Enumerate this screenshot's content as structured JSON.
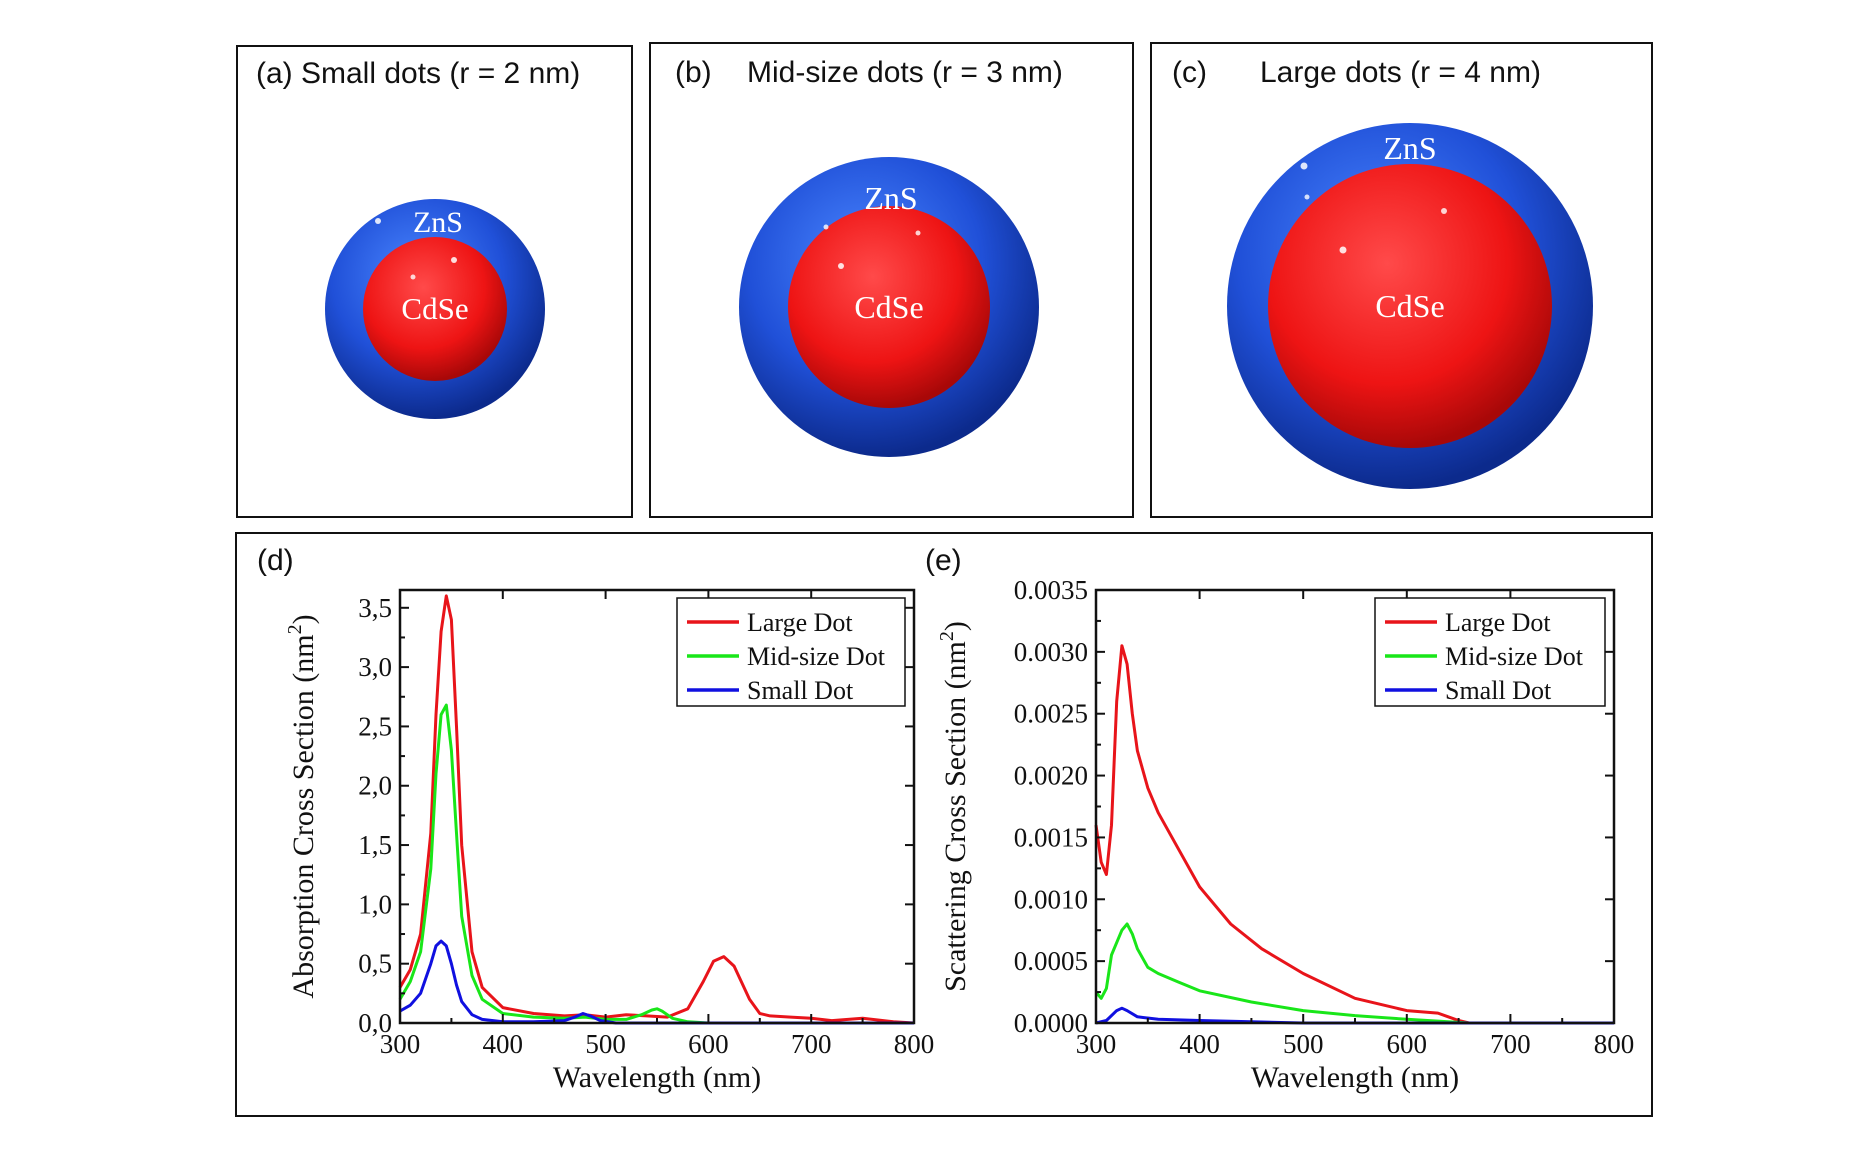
{
  "panels": {
    "a": {
      "title": "(a) Small dots (r = 2 nm)",
      "shell_label": "ZnS",
      "core_label": "CdSe"
    },
    "b": {
      "letter": "(b)",
      "title": "Mid-size dots (r = 3 nm)",
      "shell_label": "ZnS",
      "core_label": "CdSe"
    },
    "c": {
      "letter": "(c)",
      "title": "Large dots (r = 4 nm)",
      "shell_label": "ZnS",
      "core_label": "CdSe"
    }
  },
  "plots_labels": {
    "d": "(d)",
    "e": "(e)"
  },
  "colors": {
    "large": "#e8141a",
    "mid": "#19e619",
    "small": "#1010e0",
    "shell": "#1f4fd6",
    "core": "#ee1c1c"
  },
  "chart_data": [
    {
      "type": "line",
      "xlabel": "Wavelength (nm)",
      "ylabel": "Absorption Cross Section (nm²)",
      "ylabel_main": "Absorption Cross Section (nm",
      "ylabel_sup": "2",
      "ylabel_end": ")",
      "xlim": [
        300,
        800
      ],
      "ylim": [
        0,
        3.65
      ],
      "xticks": [
        300,
        400,
        500,
        600,
        700,
        800
      ],
      "xtick_labels": [
        "300",
        "400",
        "500",
        "600",
        "700",
        "800"
      ],
      "yticks": [
        0,
        0.5,
        1.0,
        1.5,
        2.0,
        2.5,
        3.0,
        3.5
      ],
      "ytick_labels": [
        "0,0",
        "0,5",
        "1,0",
        "1,5",
        "2,0",
        "2,5",
        "3,0",
        "3,5"
      ],
      "legend_position": "top-right",
      "series": [
        {
          "name": "Large Dot",
          "color": "#e8141a",
          "x": [
            300,
            310,
            320,
            330,
            335,
            340,
            345,
            350,
            355,
            360,
            370,
            380,
            400,
            430,
            460,
            480,
            500,
            520,
            540,
            560,
            580,
            595,
            605,
            615,
            625,
            640,
            650,
            660,
            680,
            700,
            720,
            750,
            780,
            800
          ],
          "y": [
            0.3,
            0.45,
            0.75,
            1.6,
            2.6,
            3.3,
            3.6,
            3.4,
            2.5,
            1.5,
            0.6,
            0.3,
            0.13,
            0.08,
            0.06,
            0.07,
            0.05,
            0.07,
            0.06,
            0.05,
            0.12,
            0.35,
            0.52,
            0.56,
            0.48,
            0.2,
            0.08,
            0.06,
            0.05,
            0.04,
            0.02,
            0.04,
            0.01,
            0.0
          ]
        },
        {
          "name": "Mid-size Dot",
          "color": "#19e619",
          "x": [
            300,
            310,
            320,
            330,
            335,
            340,
            345,
            350,
            355,
            360,
            370,
            380,
            400,
            430,
            460,
            480,
            500,
            520,
            535,
            545,
            550,
            555,
            565,
            580,
            600,
            700,
            800
          ],
          "y": [
            0.2,
            0.35,
            0.6,
            1.3,
            2.1,
            2.6,
            2.68,
            2.3,
            1.6,
            0.9,
            0.4,
            0.2,
            0.08,
            0.05,
            0.04,
            0.05,
            0.03,
            0.03,
            0.07,
            0.11,
            0.12,
            0.1,
            0.04,
            0.01,
            0.0,
            0.0,
            0.0
          ]
        },
        {
          "name": "Small Dot",
          "color": "#1010e0",
          "x": [
            300,
            310,
            320,
            330,
            335,
            340,
            345,
            350,
            355,
            360,
            370,
            380,
            400,
            430,
            460,
            470,
            478,
            485,
            495,
            510,
            600,
            700,
            800
          ],
          "y": [
            0.1,
            0.15,
            0.25,
            0.5,
            0.65,
            0.69,
            0.65,
            0.5,
            0.32,
            0.18,
            0.07,
            0.03,
            0.01,
            0.01,
            0.02,
            0.05,
            0.08,
            0.06,
            0.02,
            0.0,
            0.0,
            0.0,
            0.0
          ]
        }
      ]
    },
    {
      "type": "line",
      "xlabel": "Wavelength (nm)",
      "ylabel": "Scattering Cross Section (nm²)",
      "ylabel_main": "Scattering Cross Section (nm",
      "ylabel_sup": "2",
      "ylabel_end": ")",
      "xlim": [
        300,
        800
      ],
      "ylim": [
        0,
        0.0035
      ],
      "xticks": [
        300,
        400,
        500,
        600,
        700,
        800
      ],
      "xtick_labels": [
        "300",
        "400",
        "500",
        "600",
        "700",
        "800"
      ],
      "yticks": [
        0,
        0.0005,
        0.001,
        0.0015,
        0.002,
        0.0025,
        0.003,
        0.0035
      ],
      "ytick_labels": [
        "0.0000",
        "0.0005",
        "0.0010",
        "0.0015",
        "0.0020",
        "0.0025",
        "0.0030",
        "0.0035"
      ],
      "legend_position": "top-right",
      "series": [
        {
          "name": "Large Dot",
          "color": "#e8141a",
          "x": [
            300,
            305,
            310,
            315,
            320,
            325,
            330,
            335,
            340,
            350,
            360,
            380,
            400,
            430,
            460,
            500,
            550,
            600,
            630,
            640,
            650,
            660,
            665
          ],
          "y": [
            0.0016,
            0.0013,
            0.0012,
            0.0016,
            0.0026,
            0.00305,
            0.0029,
            0.0025,
            0.0022,
            0.0019,
            0.0017,
            0.0014,
            0.0011,
            0.0008,
            0.0006,
            0.0004,
            0.0002,
            0.0001,
            8e-05,
            5e-05,
            2e-05,
            0.0,
            0.0
          ]
        },
        {
          "name": "Mid-size Dot",
          "color": "#19e619",
          "x": [
            300,
            305,
            310,
            315,
            320,
            325,
            330,
            335,
            340,
            350,
            360,
            380,
            400,
            450,
            500,
            550,
            600,
            640,
            660
          ],
          "y": [
            0.00025,
            0.0002,
            0.00028,
            0.00055,
            0.00065,
            0.00075,
            0.0008,
            0.00072,
            0.0006,
            0.00045,
            0.0004,
            0.00033,
            0.00026,
            0.00017,
            0.0001,
            6e-05,
            3e-05,
            1e-05,
            0.0
          ]
        },
        {
          "name": "Small Dot",
          "color": "#1010e0",
          "x": [
            300,
            310,
            320,
            325,
            330,
            340,
            360,
            400,
            450,
            500,
            600,
            700,
            800
          ],
          "y": [
            0.0,
            2e-05,
            0.0001,
            0.00012,
            0.0001,
            5e-05,
            3e-05,
            2e-05,
            1e-05,
            0.0,
            0.0,
            0.0,
            0.0
          ]
        }
      ]
    }
  ]
}
